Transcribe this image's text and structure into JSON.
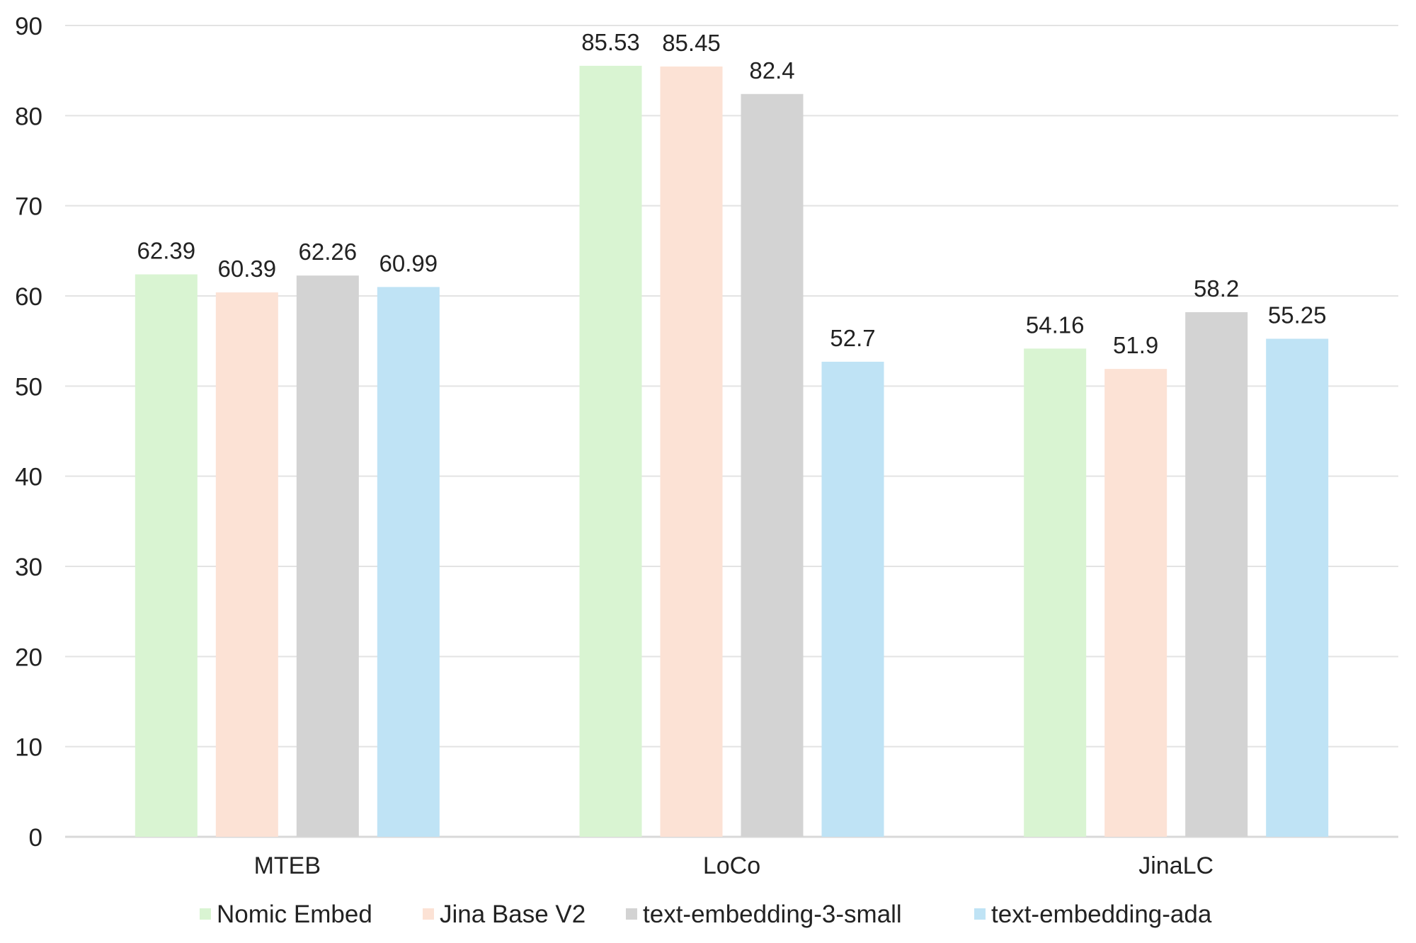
{
  "chart_data": {
    "type": "bar",
    "title": "",
    "xlabel": "",
    "ylabel": "",
    "ylim": [
      0,
      90
    ],
    "yticks": [
      0,
      10,
      20,
      30,
      40,
      50,
      60,
      70,
      80,
      90
    ],
    "grid": true,
    "legend_position": "bottom",
    "categories": [
      "MTEB",
      "LoCo",
      "JinaLC"
    ],
    "series": [
      {
        "name": "Nomic Embed",
        "color": "#d9f4d2",
        "values": [
          62.39,
          85.53,
          54.16
        ],
        "labels": [
          "62.39",
          "85.53",
          "54.16"
        ]
      },
      {
        "name": "Jina Base V2",
        "color": "#fce2d5",
        "values": [
          60.39,
          85.45,
          51.9
        ],
        "labels": [
          "60.39",
          "85.45",
          "51.9"
        ]
      },
      {
        "name": "text-embedding-3-small",
        "color": "#d3d3d3",
        "values": [
          62.26,
          82.4,
          58.2
        ],
        "labels": [
          "62.26",
          "82.4",
          "58.2"
        ]
      },
      {
        "name": "text-embedding-ada",
        "color": "#bfe3f5",
        "values": [
          60.99,
          52.7,
          55.25
        ],
        "labels": [
          "60.99",
          "52.7",
          "55.25"
        ]
      }
    ]
  }
}
